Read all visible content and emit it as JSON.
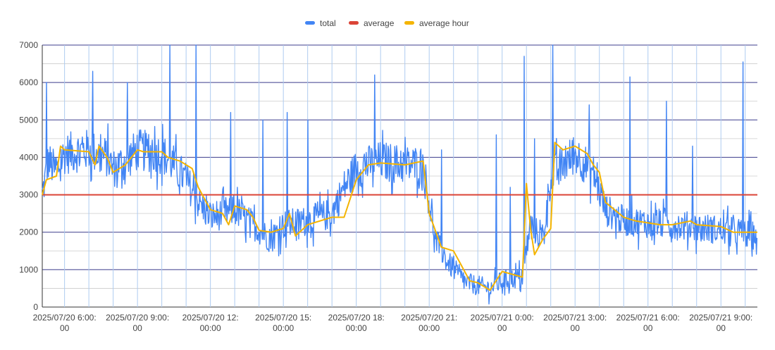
{
  "chart_data": {
    "type": "line",
    "ylim": [
      0,
      7000
    ],
    "y_ticks": [
      "0",
      "1000",
      "2000",
      "3000",
      "4000",
      "5000",
      "6000",
      "7000"
    ],
    "x_range": [
      "2025-07-20T05:05",
      "2025-07-21T10:30"
    ],
    "x_ticks": [
      {
        "t": "2025-07-20T06:00",
        "line1": "2025/07/20 6:00:",
        "line2": "00"
      },
      {
        "t": "2025-07-20T09:00",
        "line1": "2025/07/20 9:00:",
        "line2": "00"
      },
      {
        "t": "2025-07-20T12:00",
        "line1": "2025/07/20 12:",
        "line2": "00:00"
      },
      {
        "t": "2025-07-20T15:00",
        "line1": "2025/07/20 15:",
        "line2": "00:00"
      },
      {
        "t": "2025-07-20T18:00",
        "line1": "2025/07/20 18:",
        "line2": "00:00"
      },
      {
        "t": "2025-07-20T21:00",
        "line1": "2025/07/20 21:",
        "line2": "00:00"
      },
      {
        "t": "2025-07-21T00:00",
        "line1": "2025/07/21 0:00:",
        "line2": "00"
      },
      {
        "t": "2025-07-21T03:00",
        "line1": "2025/07/21 3:00:",
        "line2": "00"
      },
      {
        "t": "2025-07-21T06:00",
        "line1": "2025/07/21 6:00:",
        "line2": "00"
      },
      {
        "t": "2025-07-21T09:00",
        "line1": "2025/07/21 9:00:",
        "line2": "00"
      }
    ],
    "legend": {
      "position": "top-center"
    },
    "grid": true,
    "series": [
      {
        "name": "total",
        "color": "#4285f4",
        "noise_amplitude": 550,
        "points": [
          [
            "2025-07-20T05:05",
            3000
          ],
          [
            "2025-07-20T05:20",
            3900
          ],
          [
            "2025-07-20T05:40",
            3600
          ],
          [
            "2025-07-20T06:00",
            4100
          ],
          [
            "2025-07-20T07:00",
            4200
          ],
          [
            "2025-07-20T07:45",
            4000
          ],
          [
            "2025-07-20T08:00",
            3700
          ],
          [
            "2025-07-20T08:30",
            3900
          ],
          [
            "2025-07-20T09:00",
            4200
          ],
          [
            "2025-07-20T10:00",
            4100
          ],
          [
            "2025-07-20T10:30",
            3800
          ],
          [
            "2025-07-20T11:00",
            3400
          ],
          [
            "2025-07-20T11:30",
            2800
          ],
          [
            "2025-07-20T12:00",
            2400
          ],
          [
            "2025-07-20T13:00",
            2600
          ],
          [
            "2025-07-20T13:45",
            2200
          ],
          [
            "2025-07-20T14:30",
            1800
          ],
          [
            "2025-07-20T15:00",
            2200
          ],
          [
            "2025-07-20T16:00",
            2300
          ],
          [
            "2025-07-20T17:00",
            2500
          ],
          [
            "2025-07-20T17:30",
            3200
          ],
          [
            "2025-07-20T18:00",
            3700
          ],
          [
            "2025-07-20T19:00",
            3900
          ],
          [
            "2025-07-20T20:00",
            3800
          ],
          [
            "2025-07-20T20:45",
            3800
          ],
          [
            "2025-07-20T21:15",
            1800
          ],
          [
            "2025-07-20T21:45",
            1200
          ],
          [
            "2025-07-20T22:30",
            650
          ],
          [
            "2025-07-20T23:30",
            500
          ],
          [
            "2025-07-21T00:00",
            700
          ],
          [
            "2025-07-21T00:50",
            800
          ],
          [
            "2025-07-21T01:10",
            2200
          ],
          [
            "2025-07-21T01:40",
            1800
          ],
          [
            "2025-07-21T02:00",
            3500
          ],
          [
            "2025-07-21T03:00",
            4100
          ],
          [
            "2025-07-21T03:45",
            3600
          ],
          [
            "2025-07-21T04:15",
            2600
          ],
          [
            "2025-07-21T05:00",
            2300
          ],
          [
            "2025-07-21T07:00",
            2200
          ],
          [
            "2025-07-21T08:30",
            2100
          ],
          [
            "2025-07-21T10:30",
            1900
          ]
        ],
        "spikes": [
          [
            "2025-07-20T05:15",
            6000
          ],
          [
            "2025-07-20T07:10",
            6300
          ],
          [
            "2025-07-20T08:35",
            6000
          ],
          [
            "2025-07-20T10:20",
            7000
          ],
          [
            "2025-07-20T11:25",
            7000
          ],
          [
            "2025-07-20T12:50",
            5200
          ],
          [
            "2025-07-20T15:10",
            5200
          ],
          [
            "2025-07-20T18:45",
            6200
          ],
          [
            "2025-07-20T21:30",
            4200
          ],
          [
            "2025-07-20T23:45",
            4600
          ],
          [
            "2025-07-21T00:55",
            6700
          ],
          [
            "2025-07-21T02:05",
            7000
          ],
          [
            "2025-07-21T03:35",
            5400
          ],
          [
            "2025-07-21T05:15",
            6150
          ],
          [
            "2025-07-21T06:45",
            5500
          ],
          [
            "2025-07-21T07:50",
            4300
          ],
          [
            "2025-07-21T09:55",
            6550
          ],
          [
            "2025-07-20T14:10",
            5000
          ],
          [
            "2025-07-20T16:00",
            5000
          ],
          [
            "2025-07-21T00:20",
            3200
          ],
          [
            "2025-07-21T01:20",
            4500
          ]
        ]
      },
      {
        "name": "average",
        "color": "#db4437",
        "value": 3000
      },
      {
        "name": "average hour",
        "color": "#f4b400",
        "points": [
          [
            "2025-07-20T05:05",
            3000
          ],
          [
            "2025-07-20T05:15",
            3400
          ],
          [
            "2025-07-20T05:40",
            3500
          ],
          [
            "2025-07-20T05:50",
            4300
          ],
          [
            "2025-07-20T06:00",
            4200
          ],
          [
            "2025-07-20T07:00",
            4150
          ],
          [
            "2025-07-20T07:15",
            3800
          ],
          [
            "2025-07-20T07:25",
            4300
          ],
          [
            "2025-07-20T07:45",
            4000
          ],
          [
            "2025-07-20T08:00",
            3600
          ],
          [
            "2025-07-20T08:30",
            3800
          ],
          [
            "2025-07-20T09:00",
            4200
          ],
          [
            "2025-07-20T09:15",
            4150
          ],
          [
            "2025-07-20T10:00",
            4150
          ],
          [
            "2025-07-20T10:15",
            4000
          ],
          [
            "2025-07-20T10:45",
            3900
          ],
          [
            "2025-07-20T11:15",
            3700
          ],
          [
            "2025-07-20T11:30",
            3200
          ],
          [
            "2025-07-20T12:00",
            2600
          ],
          [
            "2025-07-20T12:30",
            2500
          ],
          [
            "2025-07-20T12:45",
            2200
          ],
          [
            "2025-07-20T13:00",
            2700
          ],
          [
            "2025-07-20T13:30",
            2600
          ],
          [
            "2025-07-20T13:45",
            2400
          ],
          [
            "2025-07-20T14:00",
            2050
          ],
          [
            "2025-07-20T14:30",
            2000
          ],
          [
            "2025-07-20T15:00",
            2100
          ],
          [
            "2025-07-20T15:15",
            2500
          ],
          [
            "2025-07-20T15:30",
            1900
          ],
          [
            "2025-07-20T16:00",
            2200
          ],
          [
            "2025-07-20T17:00",
            2400
          ],
          [
            "2025-07-20T17:30",
            2400
          ],
          [
            "2025-07-20T17:45",
            2900
          ],
          [
            "2025-07-20T18:00",
            3400
          ],
          [
            "2025-07-20T18:30",
            3800
          ],
          [
            "2025-07-20T19:00",
            3850
          ],
          [
            "2025-07-20T20:00",
            3800
          ],
          [
            "2025-07-20T20:45",
            3900
          ],
          [
            "2025-07-20T21:00",
            2500
          ],
          [
            "2025-07-20T21:30",
            1600
          ],
          [
            "2025-07-20T22:00",
            1500
          ],
          [
            "2025-07-20T22:20",
            1100
          ],
          [
            "2025-07-20T22:40",
            700
          ],
          [
            "2025-07-20T23:00",
            650
          ],
          [
            "2025-07-20T23:30",
            450
          ],
          [
            "2025-07-21T00:00",
            950
          ],
          [
            "2025-07-21T00:50",
            800
          ],
          [
            "2025-07-21T01:00",
            3300
          ],
          [
            "2025-07-21T01:10",
            2100
          ],
          [
            "2025-07-21T01:20",
            1400
          ],
          [
            "2025-07-21T01:40",
            1800
          ],
          [
            "2025-07-21T02:00",
            2100
          ],
          [
            "2025-07-21T02:10",
            4400
          ],
          [
            "2025-07-21T02:30",
            4200
          ],
          [
            "2025-07-21T03:00",
            4300
          ],
          [
            "2025-07-21T03:30",
            4100
          ],
          [
            "2025-07-21T03:45",
            3800
          ],
          [
            "2025-07-21T04:00",
            3600
          ],
          [
            "2025-07-21T04:15",
            2800
          ],
          [
            "2025-07-21T05:00",
            2400
          ],
          [
            "2025-07-21T05:30",
            2300
          ],
          [
            "2025-07-21T06:30",
            2200
          ],
          [
            "2025-07-21T07:00",
            2200
          ],
          [
            "2025-07-21T07:45",
            2300
          ],
          [
            "2025-07-21T08:00",
            2200
          ],
          [
            "2025-07-21T09:00",
            2150
          ],
          [
            "2025-07-21T09:30",
            2000
          ],
          [
            "2025-07-21T10:30",
            2000
          ]
        ]
      }
    ]
  }
}
